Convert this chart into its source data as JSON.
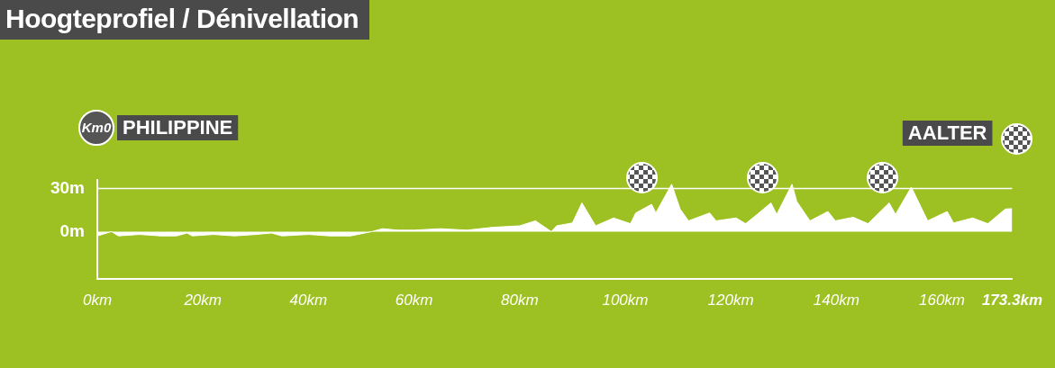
{
  "chart_data": {
    "type": "area",
    "title": "Hoogteprofiel / Dénivellation",
    "color": "#ffffff",
    "x": [
      0,
      2.7,
      4,
      8,
      12,
      15,
      17,
      18,
      22,
      26,
      30,
      33,
      35,
      40,
      44,
      48,
      52,
      54,
      57,
      60,
      65,
      70,
      75,
      80,
      83,
      86,
      87,
      90,
      91.8,
      94.4,
      97.8,
      101,
      102,
      105,
      105.8,
      108.8,
      110.4,
      112,
      116,
      117.2,
      121,
      122.8,
      125,
      127.6,
      128.7,
      131.6,
      132.5,
      135,
      138.4,
      139.8,
      143.2,
      146,
      150,
      151.2,
      154.2,
      157.3,
      161,
      162.2,
      165.8,
      168.7,
      172,
      173.3
    ],
    "values": [
      -3,
      0,
      -3,
      -2,
      -3,
      -3,
      -1,
      -3,
      -2,
      -3,
      -2,
      -1,
      -3,
      -2,
      -3,
      -3,
      0,
      2,
      1,
      1,
      2,
      1,
      3,
      4,
      7.5,
      0,
      4,
      6,
      20,
      4,
      9.5,
      5.5,
      13,
      19,
      13,
      33,
      15.7,
      7.5,
      13,
      7.5,
      9.5,
      5.5,
      12,
      20,
      12,
      33,
      21,
      7.5,
      14,
      7.5,
      10,
      5.5,
      20,
      12,
      31,
      7.5,
      14,
      6,
      9.5,
      5.5,
      15.7,
      16
    ],
    "xlim": [
      0,
      173.3
    ],
    "ylim": [
      -33,
      36
    ],
    "xticks": [
      {
        "value": 0,
        "label": "0km"
      },
      {
        "value": 20,
        "label": "20km"
      },
      {
        "value": 40,
        "label": "40km"
      },
      {
        "value": 60,
        "label": "60km"
      },
      {
        "value": 80,
        "label": "80km"
      },
      {
        "value": 100,
        "label": "100km"
      },
      {
        "value": 120,
        "label": "120km"
      },
      {
        "value": 140,
        "label": "140km"
      },
      {
        "value": 160,
        "label": "160km"
      },
      {
        "value": 173.3,
        "label": "173.3km"
      }
    ],
    "yticks": [
      {
        "value": 0,
        "label": "0m"
      },
      {
        "value": 30,
        "label": "30m"
      }
    ],
    "ref_lines": [
      {
        "axis": "y",
        "value": 30,
        "color": "#ffffff"
      }
    ],
    "annotations": [
      "Km0",
      "PHILIPPINE",
      "AALTER"
    ],
    "legend": false
  }
}
